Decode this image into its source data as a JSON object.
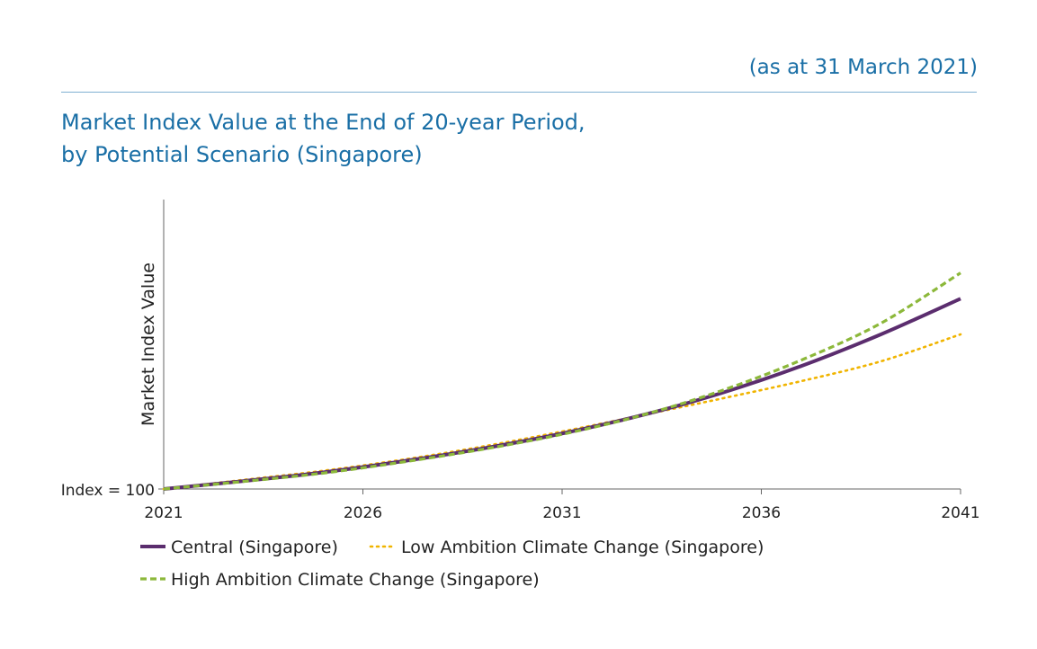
{
  "header": {
    "date_note": "(as at 31 March 2021)",
    "title_line1": "Market Index Value at the End of 20-year Period,",
    "title_line2": "by Potential Scenario (Singapore)"
  },
  "chart_data": {
    "type": "line",
    "ylabel": "Market Index Value",
    "y_baseline_label": "Index = 100",
    "xlim": [
      2021,
      2041
    ],
    "ylim": [
      100,
      173
    ],
    "x_ticks": [
      "2021",
      "2026",
      "2031",
      "2036",
      "2041"
    ],
    "grid": false,
    "legend_position": "bottom-left",
    "x": [
      2021,
      2023,
      2025,
      2027,
      2029,
      2031,
      2033,
      2035,
      2037,
      2039,
      2041
    ],
    "series": [
      {
        "name": "Central (Singapore)",
        "color": "#5b2d6e",
        "style": "solid",
        "values": [
          100,
          102,
          104.2,
          107,
          110.2,
          114,
          118.6,
          124.2,
          131,
          139,
          148
        ]
      },
      {
        "name": "Low Ambition Climate Change (Singapore)",
        "color": "#f0b400",
        "style": "dotted",
        "values": [
          100,
          102.3,
          104.6,
          107.4,
          110.7,
          114.5,
          118.6,
          122.8,
          127.2,
          132.2,
          139
        ]
      },
      {
        "name": "High Ambition Climate Change (Singapore)",
        "color": "#8cb83a",
        "style": "dashed",
        "values": [
          100,
          101.9,
          104,
          106.8,
          110,
          113.8,
          118.6,
          124.8,
          132.5,
          141.8,
          154.5
        ]
      }
    ]
  }
}
